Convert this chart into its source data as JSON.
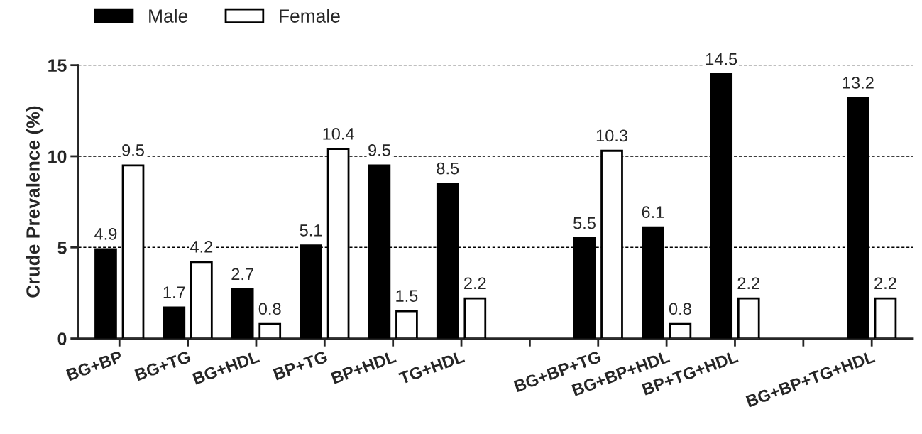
{
  "chart_data": {
    "type": "bar",
    "ylabel": "Crude Prevalence (%)",
    "categories": [
      "BG+BP",
      "BG+TG",
      "BG+HDL",
      "BP+TG",
      "BP+HDL",
      "TG+HDL",
      null,
      "BG+BP+TG",
      "BG+BP+HDL",
      "BP+TG+HDL",
      null,
      "BG+BP+TG+HDL"
    ],
    "series": [
      {
        "name": "Male",
        "color": "#000000",
        "values": [
          4.9,
          1.7,
          2.7,
          5.1,
          9.5,
          8.5,
          null,
          5.5,
          6.1,
          14.5,
          null,
          13.2
        ]
      },
      {
        "name": "Female",
        "color": "#ffffff",
        "values": [
          9.5,
          4.2,
          0.8,
          10.4,
          1.5,
          2.2,
          null,
          10.3,
          0.8,
          2.2,
          null,
          2.2
        ]
      }
    ],
    "ylim": [
      0,
      15
    ],
    "yticks": [
      0,
      5,
      10,
      15
    ],
    "grid": "y",
    "legend": "top left",
    "data_labels": true
  }
}
